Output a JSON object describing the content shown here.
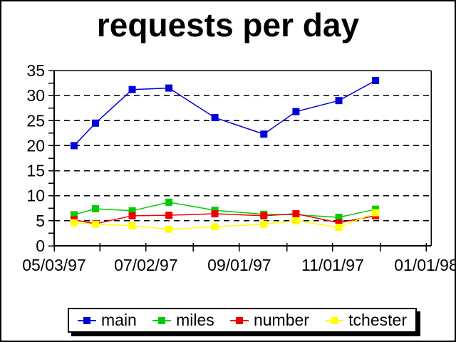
{
  "figure": {
    "background": "#FFFFFF",
    "border_color": "#000000",
    "axis_color": "#000000",
    "gridline_style": "dashed"
  },
  "chart_data": {
    "type": "line",
    "title": "requests per day",
    "xlabel": "",
    "ylabel": "",
    "ylim": [
      0,
      35
    ],
    "ytick_step": 5,
    "ytick_minor_step": 2.5,
    "ytick_labels": [
      "0",
      "5",
      "10",
      "15",
      "20",
      "25",
      "30",
      "35"
    ],
    "grid": "horizontal dashed gridlines at every 5 units",
    "legend_position": "bottom",
    "x_tick_labels": [
      "05/03/97",
      "07/02/97",
      "09/01/97",
      "11/01/97",
      "01/01/98"
    ],
    "x_label_days": [
      0,
      60,
      121,
      182,
      243
    ],
    "x_tick_days": [
      0,
      30,
      60,
      91,
      121,
      152,
      182,
      213,
      243
    ],
    "x_axis_range_days": [
      0,
      246
    ],
    "points_days_from_start": [
      13,
      27,
      51,
      75,
      105,
      137,
      158,
      186,
      210
    ],
    "points_dates_approx": [
      "05/16/97",
      "05/30/97",
      "06/23/97",
      "07/17/97",
      "08/16/97",
      "09/17/97",
      "10/08/97",
      "11/05/97",
      "11/29/97"
    ],
    "series": [
      {
        "name": "main",
        "color": "#0000DD",
        "values": [
          20,
          24.5,
          31.2,
          31.5,
          25.6,
          22.3,
          26.8,
          29,
          33
        ]
      },
      {
        "name": "miles",
        "color": "#00CC00",
        "values": [
          6.2,
          7.4,
          7.0,
          8.7,
          7.1,
          6.3,
          6.2,
          5.7,
          7.3
        ]
      },
      {
        "name": "number",
        "color": "#EE0000",
        "values": [
          5.2,
          4.4,
          6.0,
          6.1,
          6.4,
          6.0,
          6.4,
          4.6,
          6.0
        ]
      },
      {
        "name": "tchester",
        "color": "#FFFF00",
        "values": [
          4.6,
          4.3,
          4.0,
          3.3,
          3.8,
          4.3,
          5.0,
          3.7,
          6.6
        ]
      }
    ],
    "marker": "square"
  }
}
